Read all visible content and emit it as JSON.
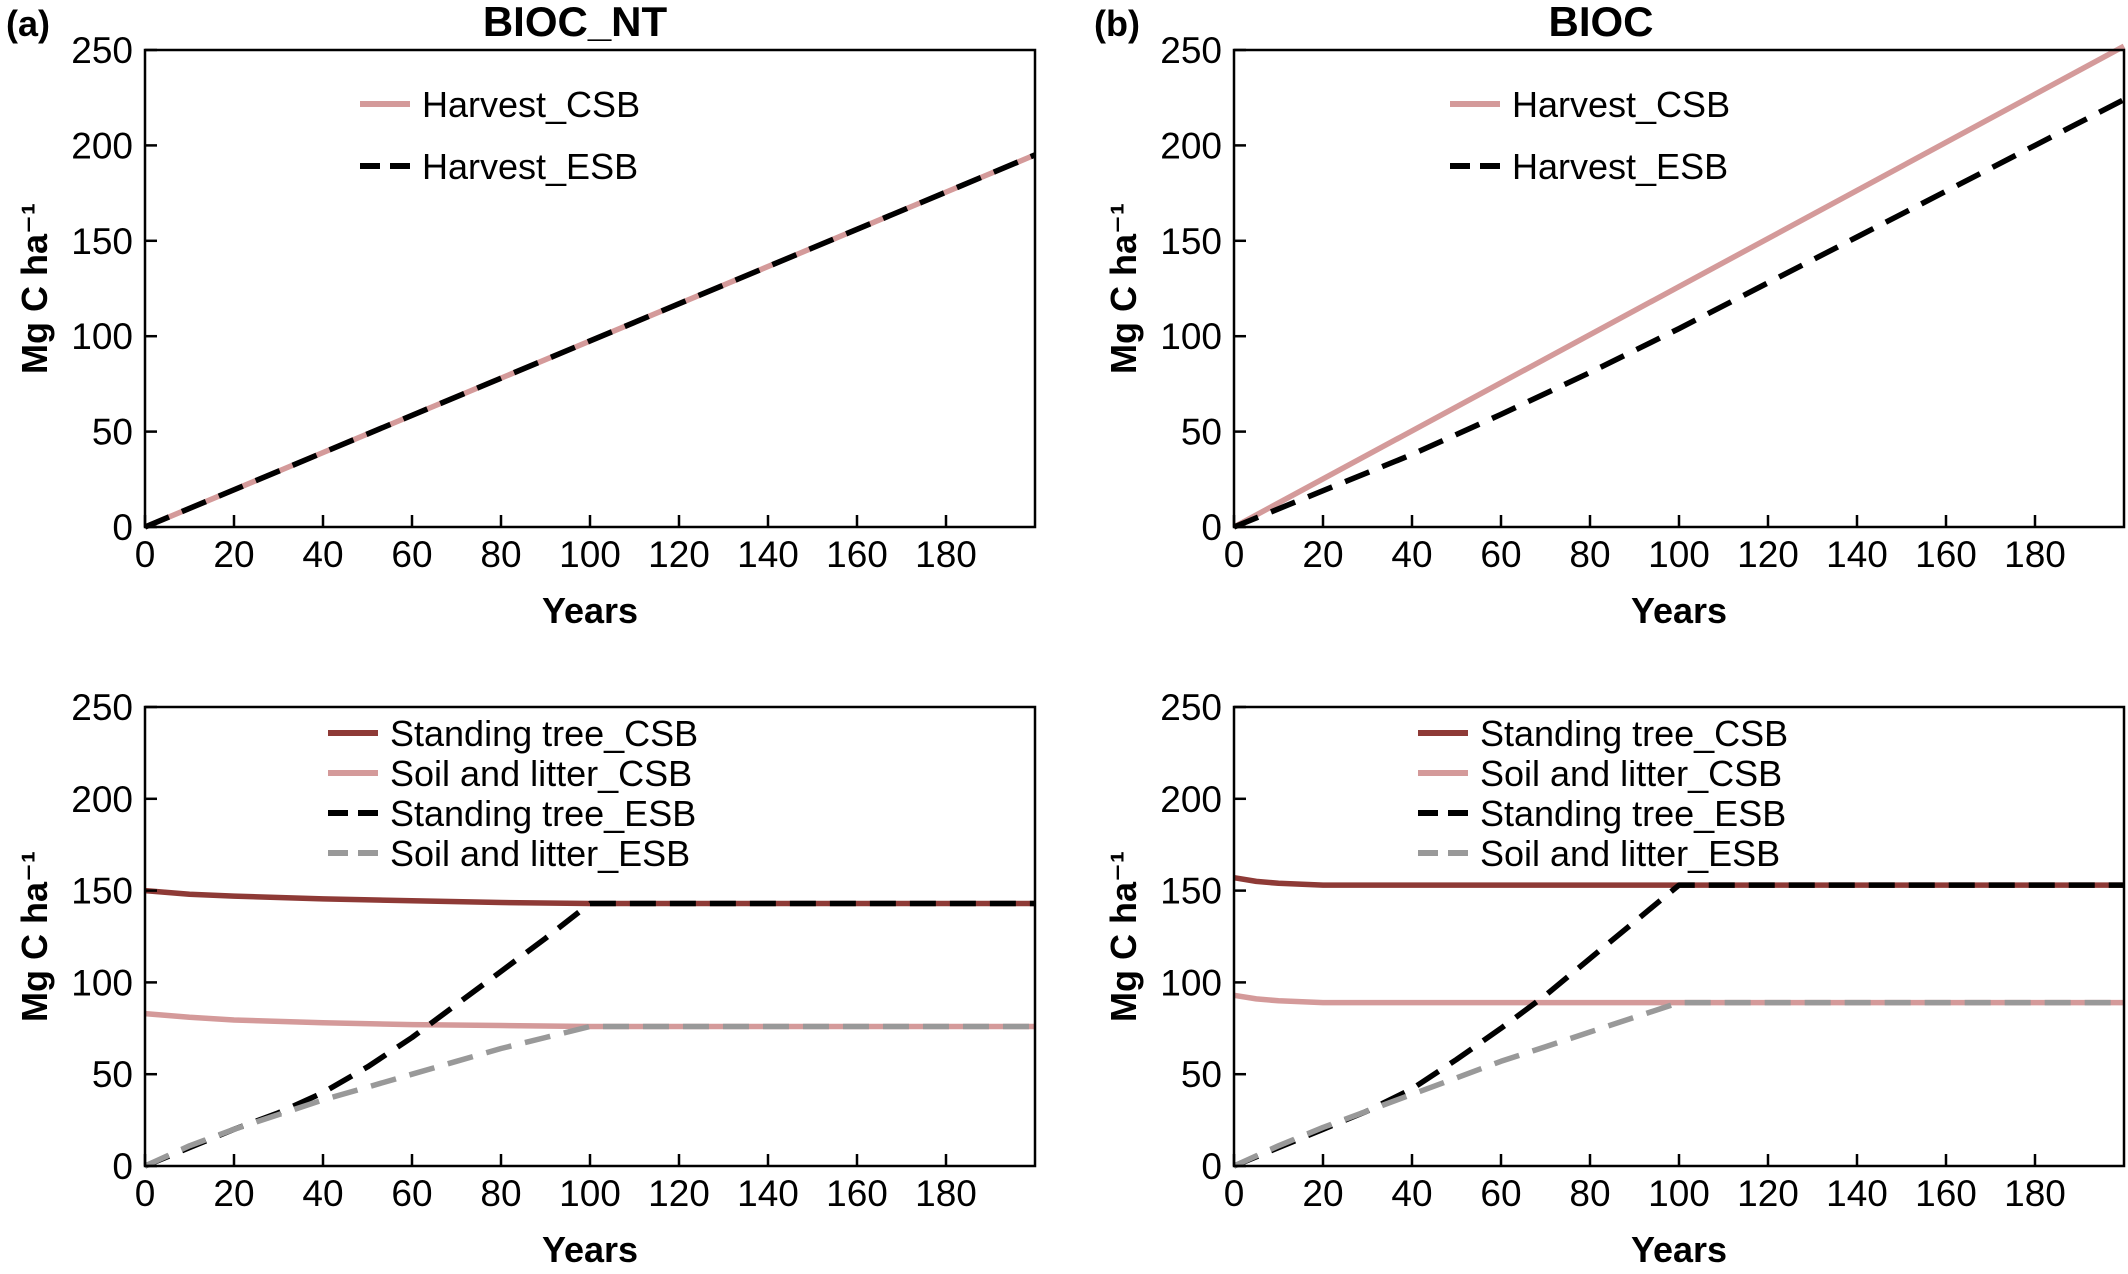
{
  "figure": {
    "panel_letters": [
      "(a)",
      "(b)"
    ],
    "column_titles": [
      "BIOC_NT",
      "BIOC"
    ]
  },
  "colors": {
    "harvest_csb": "#d49a9a",
    "harvest_esb": "#000000",
    "standing_csb": "#8e3a36",
    "soil_csb": "#d49a9a",
    "standing_esb": "#000000",
    "soil_esb": "#999999"
  },
  "chart_data": [
    {
      "id": "top-left",
      "type": "line",
      "title": "BIOC_NT",
      "panel": "(a)",
      "xlabel": "Years",
      "ylabel": "Mg C ha⁻¹",
      "xlim": [
        0,
        200
      ],
      "ylim": [
        0,
        250
      ],
      "xticks": [
        0,
        20,
        40,
        60,
        80,
        100,
        120,
        140,
        160,
        180
      ],
      "yticks": [
        0,
        50,
        100,
        150,
        200,
        250
      ],
      "legend_position": "top-center",
      "series": [
        {
          "name": "Harvest_CSB",
          "style": "solid",
          "color": "#d49a9a",
          "x": [
            0,
            200
          ],
          "y": [
            0,
            195
          ]
        },
        {
          "name": "Harvest_ESB",
          "style": "dashed",
          "color": "#000000",
          "x": [
            0,
            200
          ],
          "y": [
            0,
            195
          ]
        }
      ]
    },
    {
      "id": "top-right",
      "type": "line",
      "title": "BIOC",
      "panel": "(b)",
      "xlabel": "Years",
      "ylabel": "Mg C ha⁻¹",
      "xlim": [
        0,
        200
      ],
      "ylim": [
        0,
        250
      ],
      "xticks": [
        0,
        20,
        40,
        60,
        80,
        100,
        120,
        140,
        160,
        180
      ],
      "yticks": [
        0,
        50,
        100,
        150,
        200,
        250
      ],
      "legend_position": "top-center",
      "series": [
        {
          "name": "Harvest_CSB",
          "style": "solid",
          "color": "#d49a9a",
          "x": [
            0,
            200
          ],
          "y": [
            0,
            252
          ]
        },
        {
          "name": "Harvest_ESB",
          "style": "dashed",
          "color": "#000000",
          "x": [
            0,
            20,
            40,
            60,
            80,
            100,
            120,
            140,
            160,
            180,
            200
          ],
          "y": [
            0,
            19,
            38,
            59,
            81,
            104,
            128,
            152,
            176,
            200,
            224
          ]
        }
      ]
    },
    {
      "id": "bottom-left",
      "type": "line",
      "xlabel": "Years",
      "ylabel": "Mg C ha⁻¹",
      "xlim": [
        0,
        200
      ],
      "ylim": [
        0,
        250
      ],
      "xticks": [
        0,
        20,
        40,
        60,
        80,
        100,
        120,
        140,
        160,
        180
      ],
      "yticks": [
        0,
        50,
        100,
        150,
        200,
        250
      ],
      "legend_position": "top-center",
      "series": [
        {
          "name": "Standing tree_CSB",
          "style": "solid",
          "color": "#8e3a36",
          "x": [
            0,
            10,
            20,
            40,
            60,
            80,
            100,
            120,
            140,
            160,
            180,
            200
          ],
          "y": [
            150,
            148,
            147,
            145.5,
            144.5,
            143.5,
            143,
            143,
            143,
            143,
            143,
            143
          ]
        },
        {
          "name": "Soil and litter_CSB",
          "style": "solid",
          "color": "#d49a9a",
          "x": [
            0,
            10,
            20,
            40,
            60,
            80,
            100,
            120,
            140,
            160,
            180,
            200
          ],
          "y": [
            83,
            81,
            79.5,
            78,
            77,
            76.5,
            76,
            76,
            76,
            76,
            76,
            76
          ]
        },
        {
          "name": "Standing tree_ESB",
          "style": "dashed",
          "color": "#000000",
          "x": [
            0,
            10,
            20,
            30,
            40,
            50,
            60,
            70,
            80,
            90,
            100,
            120,
            140,
            160,
            180,
            200
          ],
          "y": [
            0,
            10,
            20,
            29,
            40,
            54,
            70,
            88,
            106,
            124,
            143,
            143,
            143,
            143,
            143,
            143
          ]
        },
        {
          "name": "Soil and litter_ESB",
          "style": "dashed",
          "color": "#999999",
          "x": [
            0,
            10,
            20,
            30,
            40,
            50,
            60,
            70,
            80,
            90,
            100,
            120,
            140,
            160,
            180,
            200
          ],
          "y": [
            0,
            11,
            20,
            28,
            36,
            43,
            50,
            57,
            64,
            70,
            76,
            76,
            76,
            76,
            76,
            76
          ]
        }
      ]
    },
    {
      "id": "bottom-right",
      "type": "line",
      "xlabel": "Years",
      "ylabel": "Mg C ha⁻¹",
      "xlim": [
        0,
        200
      ],
      "ylim": [
        0,
        250
      ],
      "xticks": [
        0,
        20,
        40,
        60,
        80,
        100,
        120,
        140,
        160,
        180
      ],
      "yticks": [
        0,
        50,
        100,
        150,
        200,
        250
      ],
      "legend_position": "top-center",
      "series": [
        {
          "name": "Standing tree_CSB",
          "style": "solid",
          "color": "#8e3a36",
          "x": [
            0,
            5,
            10,
            20,
            30,
            40,
            60,
            100,
            200
          ],
          "y": [
            157,
            155,
            154,
            153,
            153,
            153,
            153,
            153,
            153
          ]
        },
        {
          "name": "Soil and litter_CSB",
          "style": "solid",
          "color": "#d49a9a",
          "x": [
            0,
            5,
            10,
            20,
            30,
            40,
            60,
            100,
            200
          ],
          "y": [
            93,
            91,
            90,
            89,
            89,
            89,
            89,
            89,
            89
          ]
        },
        {
          "name": "Standing tree_ESB",
          "style": "dashed",
          "color": "#000000",
          "x": [
            0,
            10,
            20,
            30,
            40,
            50,
            60,
            70,
            80,
            90,
            100,
            120,
            140,
            160,
            180,
            200
          ],
          "y": [
            0,
            10,
            20,
            30,
            42,
            58,
            75,
            93,
            113,
            133,
            153,
            153,
            153,
            153,
            153,
            153
          ]
        },
        {
          "name": "Soil and litter_ESB",
          "style": "dashed",
          "color": "#999999",
          "x": [
            0,
            10,
            20,
            30,
            40,
            50,
            60,
            70,
            80,
            90,
            100,
            120,
            140,
            160,
            180,
            200
          ],
          "y": [
            0,
            11,
            21,
            30,
            39,
            48,
            57,
            65,
            73,
            81,
            89,
            89,
            89,
            89,
            89,
            89
          ]
        }
      ]
    }
  ]
}
